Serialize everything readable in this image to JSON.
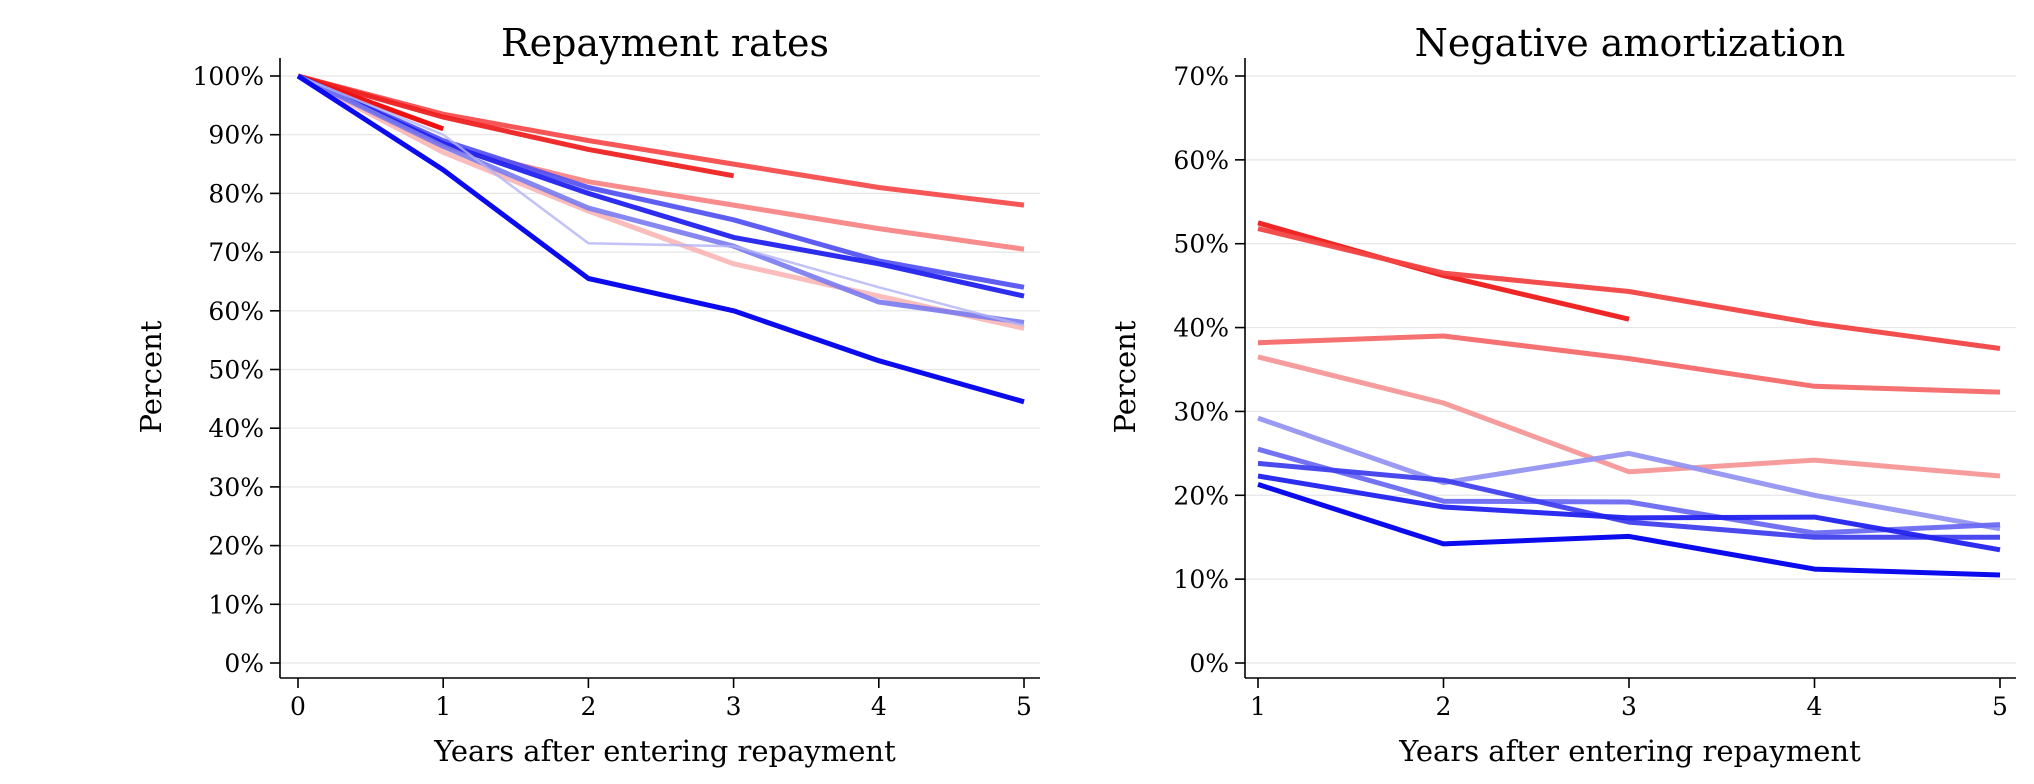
{
  "chart_data": [
    {
      "type": "line",
      "title": "Repayment rates",
      "xlabel": "Years after entering repayment",
      "ylabel": "Percent",
      "xlim": [
        0,
        5
      ],
      "ylim": [
        0,
        100
      ],
      "x_ticks": [
        0,
        1,
        2,
        3,
        4,
        5
      ],
      "y_ticks": [
        0,
        10,
        20,
        30,
        40,
        50,
        60,
        70,
        80,
        90,
        100
      ],
      "y_tick_suffix": "%",
      "grid": true,
      "legend": "none",
      "series": [
        {
          "x": [
            0,
            1,
            2,
            3,
            4,
            5
          ],
          "values": [
            100,
            93.5,
            89,
            85,
            81,
            78
          ],
          "color": "#f54d4d",
          "opacity": 0.95,
          "weight": 5
        },
        {
          "x": [
            0,
            1,
            2,
            3,
            4,
            5
          ],
          "values": [
            100,
            88,
            82,
            78,
            74,
            70.5
          ],
          "color": "#f77f7f",
          "opacity": 0.9,
          "weight": 5
        },
        {
          "x": [
            0,
            1,
            2,
            3
          ],
          "values": [
            100,
            93,
            87.5,
            83
          ],
          "color": "#ee2222",
          "opacity": 0.95,
          "weight": 5
        },
        {
          "x": [
            0,
            1
          ],
          "values": [
            100,
            91
          ],
          "color": "#ee1111",
          "opacity": 1,
          "weight": 5
        },
        {
          "x": [
            0,
            1,
            2,
            3,
            4,
            5
          ],
          "values": [
            100,
            87,
            77,
            68,
            62.5,
            57
          ],
          "color": "#fab0b0",
          "opacity": 0.85,
          "weight": 5
        },
        {
          "x": [
            0,
            1,
            2,
            3,
            4,
            5
          ],
          "values": [
            100,
            89,
            81,
            75.5,
            68.5,
            64
          ],
          "color": "#4d4df2",
          "opacity": 0.9,
          "weight": 5
        },
        {
          "x": [
            0,
            1,
            2,
            3,
            4,
            5
          ],
          "values": [
            100,
            88.5,
            80,
            72.5,
            68,
            62.5
          ],
          "color": "#2222ee",
          "opacity": 0.95,
          "weight": 5
        },
        {
          "x": [
            0,
            1,
            2,
            3,
            4,
            5
          ],
          "values": [
            100,
            88,
            77.5,
            71,
            61.5,
            58
          ],
          "color": "#7a7aef",
          "opacity": 0.9,
          "weight": 5
        },
        {
          "x": [
            0,
            1,
            2,
            3,
            4,
            5
          ],
          "values": [
            100,
            90,
            71.5,
            71,
            64,
            57.5
          ],
          "color": "#b3b3f5",
          "opacity": 0.8,
          "weight": 2.5
        },
        {
          "x": [
            0,
            1,
            2,
            3,
            4,
            5
          ],
          "values": [
            100,
            84,
            65.5,
            60,
            51.5,
            44.5
          ],
          "color": "#0b0bee",
          "opacity": 1,
          "weight": 5
        }
      ]
    },
    {
      "type": "line",
      "title": "Negative amortization",
      "xlabel": "Years after entering repayment",
      "ylabel": "Percent",
      "xlim": [
        1,
        5
      ],
      "ylim": [
        0,
        70
      ],
      "x_ticks": [
        1,
        2,
        3,
        4,
        5
      ],
      "y_ticks": [
        0,
        10,
        20,
        30,
        40,
        50,
        60,
        70
      ],
      "y_tick_suffix": "%",
      "grid": true,
      "legend": "none",
      "series": [
        {
          "x": [
            1,
            2,
            3
          ],
          "values": [
            52.5,
            46.2,
            41
          ],
          "color": "#ee1a1a",
          "opacity": 0.95,
          "weight": 5
        },
        {
          "x": [
            1,
            2,
            3,
            4,
            5
          ],
          "values": [
            51.8,
            46.5,
            44.3,
            40.5,
            37.5
          ],
          "color": "#f24444",
          "opacity": 0.95,
          "weight": 5
        },
        {
          "x": [
            1,
            2,
            3,
            4,
            5
          ],
          "values": [
            38.2,
            39,
            36.3,
            33,
            32.3
          ],
          "color": "#f56a6a",
          "opacity": 0.95,
          "weight": 5
        },
        {
          "x": [
            1,
            2,
            3,
            4,
            5
          ],
          "values": [
            36.5,
            31,
            22.8,
            24.2,
            22.3
          ],
          "color": "#f79797",
          "opacity": 0.95,
          "weight": 5
        },
        {
          "x": [
            1,
            2,
            3,
            4,
            5
          ],
          "values": [
            29.2,
            21.5,
            25,
            20,
            16
          ],
          "color": "#9595f2",
          "opacity": 0.95,
          "weight": 5
        },
        {
          "x": [
            1,
            2,
            3,
            4,
            5
          ],
          "values": [
            25.5,
            19.3,
            19.2,
            15.5,
            16.5
          ],
          "color": "#6a6af2",
          "opacity": 0.95,
          "weight": 5
        },
        {
          "x": [
            1,
            2,
            3,
            4,
            5
          ],
          "values": [
            23.8,
            21.8,
            16.8,
            15,
            15
          ],
          "color": "#4040ee",
          "opacity": 0.95,
          "weight": 5
        },
        {
          "x": [
            1,
            2,
            3,
            4,
            5
          ],
          "values": [
            22.3,
            18.6,
            17.3,
            17.4,
            13.5
          ],
          "color": "#2222ee",
          "opacity": 0.95,
          "weight": 5
        },
        {
          "x": [
            1,
            2,
            3,
            4,
            5
          ],
          "values": [
            21.3,
            14.2,
            15.1,
            11.2,
            10.5
          ],
          "color": "#0b0bee",
          "opacity": 1,
          "weight": 5
        }
      ]
    }
  ]
}
